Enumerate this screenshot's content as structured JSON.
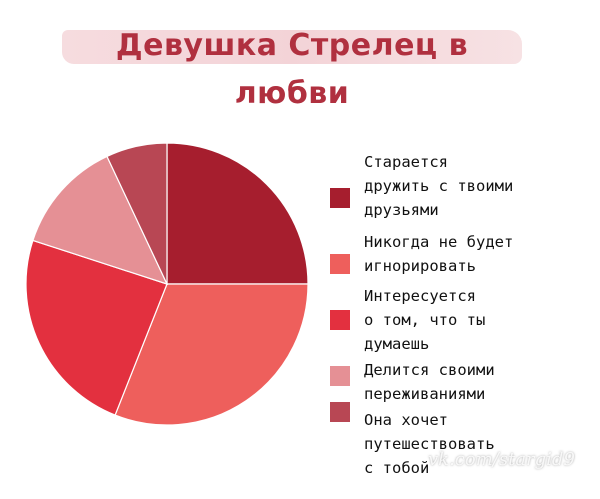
{
  "chart_data": {
    "type": "pie",
    "title": "Девушка Стрелец в любви",
    "slices": [
      {
        "label": "Старается дружить с твоими друзьями",
        "value": 25,
        "color": "#a61e2e"
      },
      {
        "label": "Никогда не будет игнорировать",
        "value": 31,
        "color": "#ee5f5c"
      },
      {
        "label": "Интересуется о том, что ты думаешь",
        "value": 24,
        "color": "#e3303f"
      },
      {
        "label": "Делится своими переживаниями",
        "value": 13,
        "color": "#e59095"
      },
      {
        "label": "Она хочет путешествовать с тобой",
        "value": 7,
        "color": "#b84754"
      }
    ],
    "legend_position": "right"
  },
  "legend": {
    "lines": [
      [
        "Старается",
        "дружить с твоими",
        "друзьями"
      ],
      [
        "Никогда не будет",
        "игнорировать"
      ],
      [
        "Интересуется",
        "о том, что ты",
        "думаешь"
      ],
      [
        "Делится своими",
        "переживаниями"
      ],
      [
        "Она хочет",
        "путешествовать",
        "с тобой"
      ]
    ]
  },
  "watermark": "vk.com/stargid9"
}
